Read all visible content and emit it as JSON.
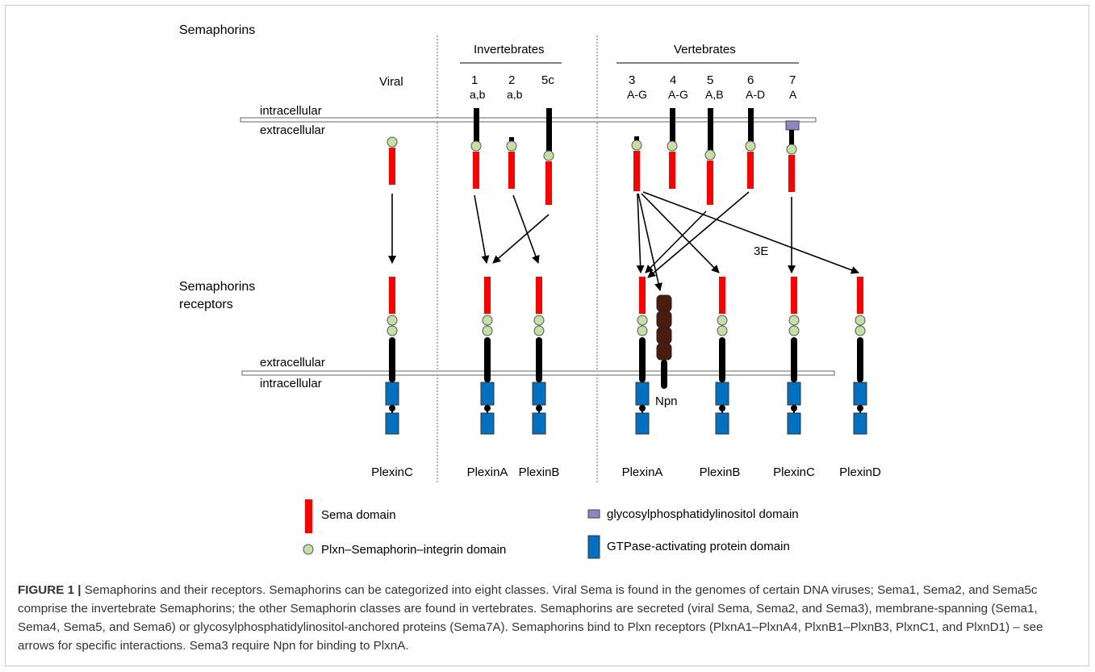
{
  "labels": {
    "semaphorins": "Semaphorins",
    "receptors_line1": "Semaphorins",
    "receptors_line2": "receptors",
    "intracellular": "intracellular",
    "extracellular": "extracellular",
    "invertebrates": "Invertebrates",
    "vertebrates": "Vertebrates",
    "viral": "Viral",
    "npn": "Npn",
    "sema3e": "3E"
  },
  "sema_classes": [
    {
      "num": "1",
      "sub": "a,b"
    },
    {
      "num": "2",
      "sub": "a,b"
    },
    {
      "num": "5c",
      "sub": ""
    },
    {
      "num": "3",
      "sub": "A-G"
    },
    {
      "num": "4",
      "sub": "A-G"
    },
    {
      "num": "5",
      "sub": "A,B"
    },
    {
      "num": "6",
      "sub": "A-D"
    },
    {
      "num": "7",
      "sub": "A"
    }
  ],
  "receptor_names": [
    "PlexinC",
    "PlexinA",
    "PlexinB",
    "PlexinA",
    "PlexinB",
    "PlexinC",
    "PlexinD"
  ],
  "legend": {
    "sema": "Sema domain",
    "psi": "Plxn–Semaphorin–integrin domain",
    "gpi": "glycosylphosphatidylinositol domain",
    "gap": "GTPase-activating protein domain"
  },
  "caption": {
    "label": "FIGURE 1 |",
    "text": " Semaphorins and their receptors. Semaphorins can be categorized into eight classes. Viral Sema is found in the genomes of certain DNA viruses; Sema1, Sema2, and Sema5c comprise the invertebrate Semaphorins; the other Semaphorin classes are found in vertebrates. Semaphorins are secreted (viral Sema, Sema2, and Sema3), membrane-spanning (Sema1, Sema4, Sema5, and Sema6) or glycosylphosphatidylinositol-anchored proteins (Sema7A). Semaphorins bind to Plxn receptors (PlxnA1–PlxnA4, PlxnB1–PlxnB3, PlxnC1, and PlxnD1) – see arrows for specific interactions. Sema3 require Npn for binding to PlxnA."
  },
  "colors": {
    "sema": "#ff0000",
    "psi": "#c5e0a5",
    "gap": "#0070c0",
    "gpi": "#8f85c6",
    "npn": "#4b1c0c",
    "stalk": "#000000"
  }
}
